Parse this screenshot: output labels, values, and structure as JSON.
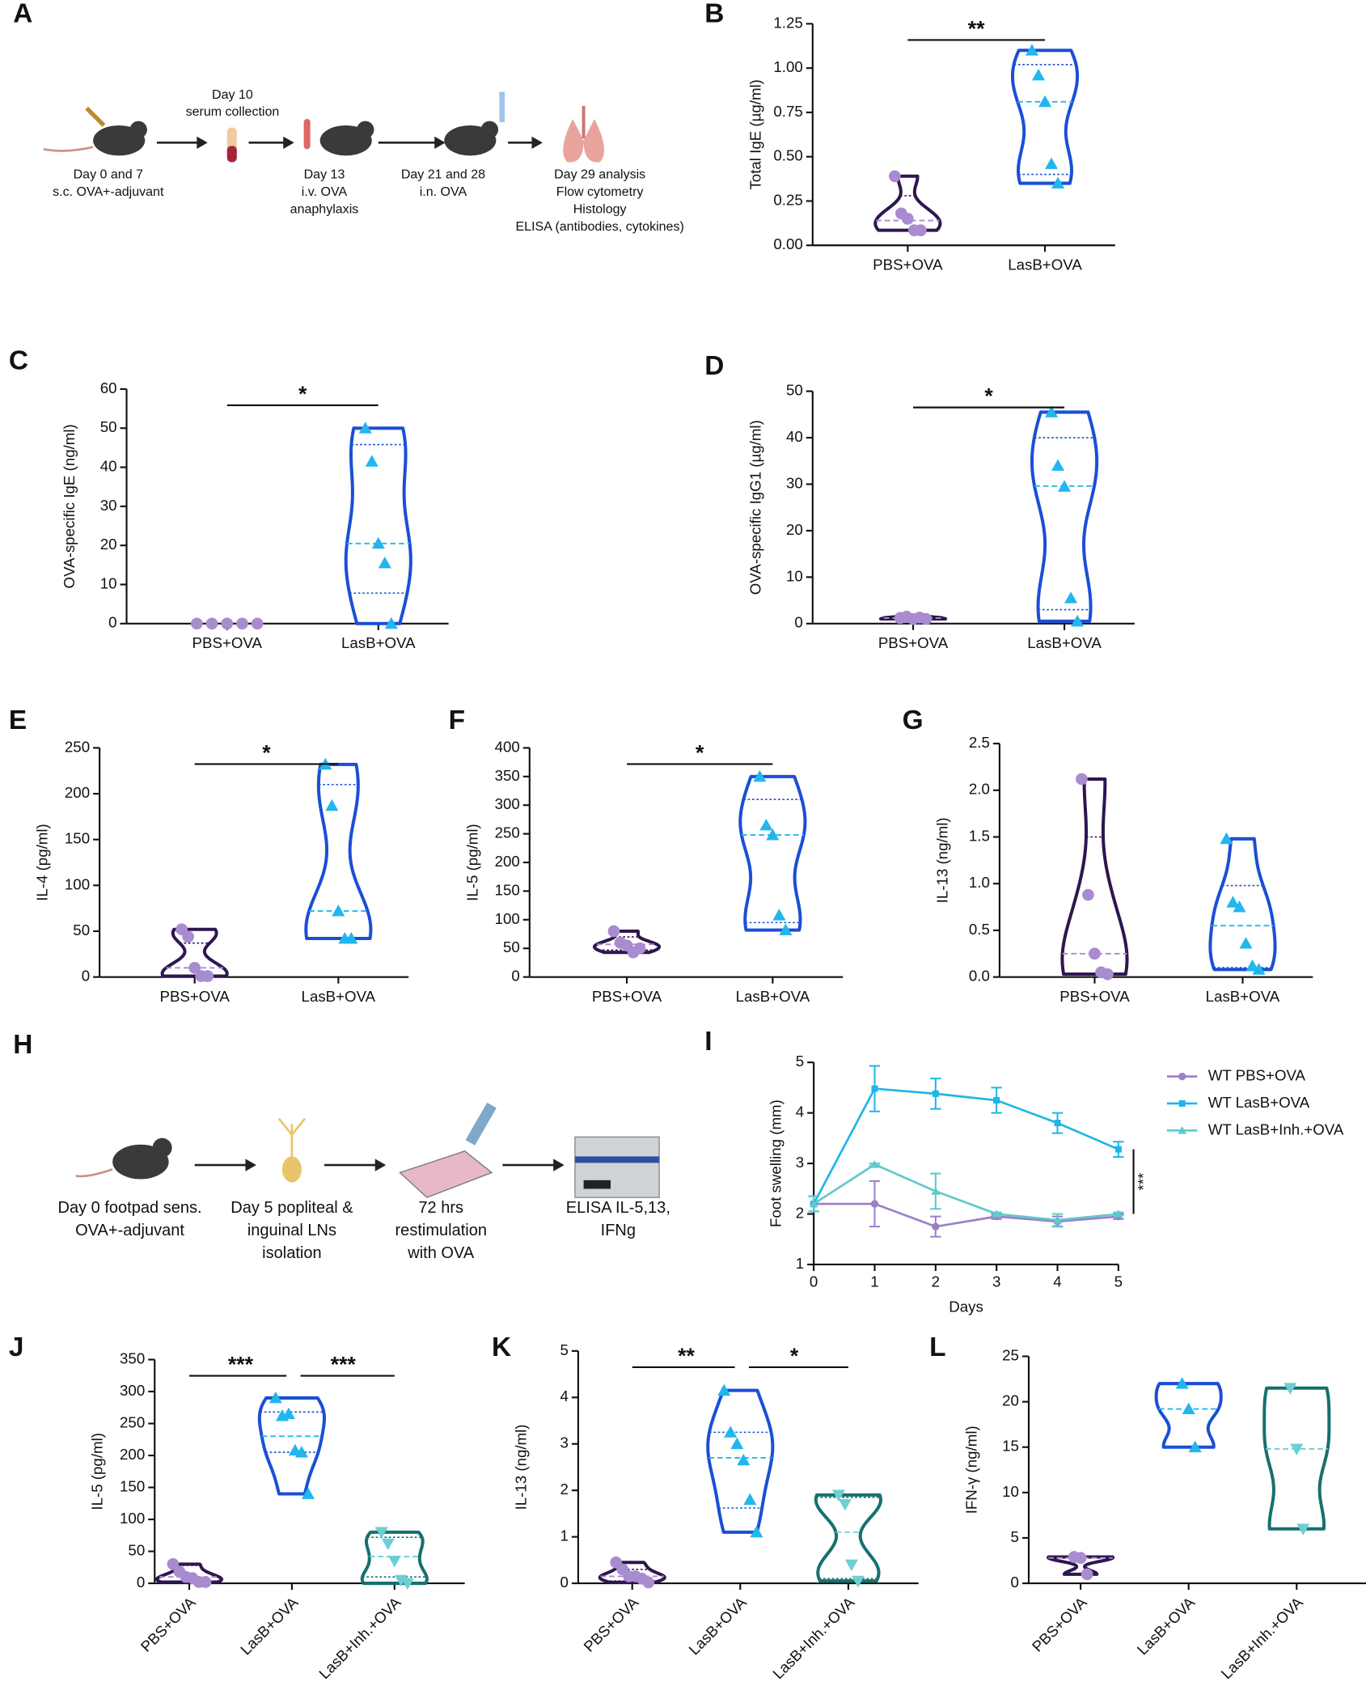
{
  "schematics": [
    {
      "panel": "A",
      "steps": [
        [
          "Day 0 and 7",
          "s.c. OVA+-adjuvant"
        ],
        [
          "Day 10",
          "serum collection"
        ],
        [
          "Day 13",
          "i.v. OVA",
          "anaphylaxis"
        ],
        [
          "Day 21 and 28",
          "i.n. OVA"
        ],
        [
          "Day 29 analysis",
          "Flow cytometry",
          "Histology",
          "ELISA (antibodies, cytokines)"
        ]
      ]
    },
    {
      "panel": "H",
      "steps": [
        [
          "Day 0 footpad sens.",
          "OVA+-adjuvant"
        ],
        [
          "Day 5 popliteal &",
          "inguinal LNs",
          "isolation"
        ],
        [
          "72 hrs",
          "restimulation",
          "with OVA"
        ],
        [
          "ELISA  IL-5,13,",
          "IFNg"
        ]
      ]
    }
  ],
  "chart_data": [
    {
      "type": "violin",
      "panel": "B",
      "ylabel": "Total IgE (µg/ml)",
      "ylim": [
        0,
        1.25
      ],
      "yticks": [
        {
          "value": 0,
          "label": "0.00"
        },
        0.25,
        {
          "value": 0.5,
          "label": "0.50"
        },
        0.75,
        {
          "value": 1,
          "label": "1.00"
        },
        1.25
      ],
      "categories": [
        "PBS+OVA",
        "LasB+OVA"
      ],
      "groups": [
        {
          "color": "#2e1650",
          "point_color": "#a98bd0",
          "marker": "circle",
          "values": [
            0.39,
            0.18,
            0.15,
            0.085,
            0.085
          ],
          "median": 0.14,
          "quartiles": [
            0.085,
            0.28
          ]
        },
        {
          "color": "#1a4fd6",
          "point_color": "#22b6ee",
          "marker": "triangle",
          "values": [
            1.1,
            0.96,
            0.81,
            0.46,
            0.35
          ],
          "median": 0.81,
          "quartiles": [
            0.4,
            1.02
          ]
        }
      ],
      "significance": [
        {
          "label": "**",
          "between": [
            0,
            1
          ]
        }
      ]
    },
    {
      "type": "violin",
      "panel": "C",
      "ylabel": "OVA-specific IgE (ng/ml)",
      "ylim": [
        0,
        60
      ],
      "yticks": [
        0,
        10,
        20,
        30,
        40,
        50,
        60
      ],
      "categories": [
        "PBS+OVA",
        "LasB+OVA"
      ],
      "groups": [
        {
          "color": "#2e1650",
          "point_color": "#a98bd0",
          "marker": "circle",
          "values": [
            0,
            0,
            0,
            0,
            0
          ]
        },
        {
          "color": "#1a4fd6",
          "point_color": "#22b6ee",
          "marker": "triangle",
          "values": [
            50,
            41.5,
            20.5,
            15.5,
            0
          ],
          "median": 20.5,
          "quartiles": [
            7.8,
            45.8
          ]
        }
      ],
      "significance": [
        {
          "label": "*",
          "between": [
            0,
            1
          ]
        }
      ]
    },
    {
      "type": "violin",
      "panel": "D",
      "ylabel": "OVA-specific IgG1 (µg/ml)",
      "ylim": [
        0,
        50
      ],
      "yticks": [
        0,
        10,
        20,
        30,
        40,
        50
      ],
      "categories": [
        "PBS+OVA",
        "LasB+OVA"
      ],
      "groups": [
        {
          "color": "#2e1650",
          "point_color": "#a98bd0",
          "marker": "circle",
          "values": [
            1.2,
            1.5,
            1.0,
            1.3,
            1.0
          ],
          "median": 1.2
        },
        {
          "color": "#1a4fd6",
          "point_color": "#22b6ee",
          "marker": "triangle",
          "values": [
            45.5,
            34,
            29.5,
            5.5,
            0.5
          ],
          "median": 29.6,
          "quartiles": [
            3,
            40
          ]
        }
      ],
      "significance": [
        {
          "label": "*",
          "between": [
            0,
            1
          ]
        }
      ]
    },
    {
      "type": "violin",
      "panel": "E",
      "ylabel": "IL-4 (pg/ml)",
      "ylim": [
        0,
        250
      ],
      "yticks": [
        0,
        50,
        100,
        150,
        200,
        250
      ],
      "categories": [
        "PBS+OVA",
        "LasB+OVA"
      ],
      "groups": [
        {
          "color": "#2e1650",
          "point_color": "#a98bd0",
          "marker": "circle",
          "values": [
            52,
            44,
            10,
            1,
            1
          ],
          "median": 10,
          "quartiles": [
            1,
            37
          ]
        },
        {
          "color": "#1a4fd6",
          "point_color": "#22b6ee",
          "marker": "triangle",
          "values": [
            232,
            187,
            72,
            42,
            42
          ],
          "median": 72,
          "quartiles": [
            42,
            210
          ]
        }
      ],
      "significance": [
        {
          "label": "*",
          "between": [
            0,
            1
          ]
        }
      ]
    },
    {
      "type": "violin",
      "panel": "F",
      "ylabel": "IL-5 (pg/ml)",
      "ylim": [
        0,
        400
      ],
      "yticks": [
        0,
        50,
        100,
        150,
        200,
        250,
        300,
        350,
        400
      ],
      "categories": [
        "PBS+OVA",
        "LasB+OVA"
      ],
      "groups": [
        {
          "color": "#2e1650",
          "point_color": "#a98bd0",
          "marker": "circle",
          "values": [
            80,
            60,
            55,
            43,
            50
          ],
          "median": 57,
          "quartiles": [
            47,
            70
          ]
        },
        {
          "color": "#1a4fd6",
          "point_color": "#22b6ee",
          "marker": "triangle",
          "values": [
            350,
            265,
            248,
            108,
            82
          ],
          "median": 248,
          "quartiles": [
            95,
            310
          ]
        }
      ],
      "significance": [
        {
          "label": "*",
          "between": [
            0,
            1
          ]
        }
      ]
    },
    {
      "type": "violin",
      "panel": "G",
      "ylabel": "IL-13 (ng/ml)",
      "ylim": [
        0,
        2.5
      ],
      "yticks": [
        {
          "value": 0,
          "label": "0.0"
        },
        0.5,
        {
          "value": 1,
          "label": "1.0"
        },
        1.5,
        {
          "value": 2,
          "label": "2.0"
        },
        2.5
      ],
      "categories": [
        "PBS+OVA",
        "LasB+OVA"
      ],
      "groups": [
        {
          "color": "#2e1650",
          "point_color": "#a98bd0",
          "marker": "circle",
          "values": [
            2.12,
            0.88,
            0.25,
            0.05,
            0.03
          ],
          "median": 0.25,
          "quartiles": [
            0.04,
            1.5
          ]
        },
        {
          "color": "#1a4fd6",
          "point_color": "#22b6ee",
          "marker": "triangle",
          "values": [
            1.48,
            0.8,
            0.75,
            0.36,
            0.12,
            0.08
          ],
          "median": 0.55,
          "quartiles": [
            0.1,
            0.98
          ]
        }
      ]
    },
    {
      "type": "line",
      "panel": "I",
      "xlabel": "Days",
      "ylabel": "Foot swelling (mm)",
      "x": [
        0,
        1,
        2,
        3,
        4,
        5
      ],
      "xlim": [
        0,
        5
      ],
      "xticks": [
        0,
        1,
        2,
        3,
        4,
        5
      ],
      "ylim": [
        1,
        5
      ],
      "yticks": [
        1,
        2,
        3,
        4,
        5
      ],
      "series": [
        {
          "name": "WT PBS+OVA",
          "color": "#9b7fc9",
          "marker": "circle",
          "values": [
            2.2,
            2.2,
            1.75,
            1.95,
            1.85,
            1.95
          ],
          "errors": [
            0.15,
            0.45,
            0.2,
            0.05,
            0.1,
            0.05
          ]
        },
        {
          "name": "WT LasB+OVA",
          "color": "#1fb5e8",
          "marker": "square",
          "values": [
            2.2,
            4.48,
            4.38,
            4.25,
            3.8,
            3.28
          ],
          "errors": [
            0.15,
            0.45,
            0.3,
            0.25,
            0.2,
            0.15
          ]
        },
        {
          "name": "WT LasB+Inh.+OVA",
          "color": "#5fc9cc",
          "marker": "triangle",
          "values": [
            2.2,
            2.98,
            2.45,
            2.0,
            1.88,
            2.0
          ],
          "errors": [
            0.15,
            0.02,
            0.35,
            0.03,
            0.12,
            0.03
          ]
        }
      ],
      "significance": [
        {
          "label": "***",
          "between": [
            1,
            2
          ]
        }
      ]
    },
    {
      "type": "violin",
      "panel": "J",
      "ylabel": "IL-5 (pg/ml)",
      "ylim": [
        0,
        350
      ],
      "yticks": [
        0,
        50,
        100,
        150,
        200,
        250,
        300,
        350
      ],
      "categories": [
        "PBS+OVA",
        "LasB+OVA",
        "LasB+Inh.+OVA"
      ],
      "groups": [
        {
          "color": "#2e1650",
          "point_color": "#a98bd0",
          "marker": "circle",
          "values": [
            30,
            18,
            10,
            8,
            2,
            2
          ],
          "median": 10,
          "quartiles": [
            2,
            28
          ]
        },
        {
          "color": "#1a4fd6",
          "point_color": "#22b6ee",
          "marker": "triangle",
          "values": [
            290,
            262,
            265,
            208,
            205,
            140
          ],
          "median": 230,
          "quartiles": [
            205,
            268
          ]
        },
        {
          "color": "#17706f",
          "point_color": "#6ccfd3",
          "marker": "triangle-down",
          "values": [
            80,
            62,
            35,
            5,
            0
          ],
          "median": 42,
          "quartiles": [
            10,
            72
          ]
        }
      ],
      "significance": [
        {
          "label": "***",
          "between": [
            0,
            1
          ]
        },
        {
          "label": "***",
          "between": [
            1,
            2
          ]
        }
      ]
    },
    {
      "type": "violin",
      "panel": "K",
      "ylabel": "IL-13 (ng/ml)",
      "ylim": [
        0,
        5
      ],
      "yticks": [
        0,
        1,
        2,
        3,
        4,
        5
      ],
      "categories": [
        "PBS+OVA",
        "LasB+OVA",
        "LasB+Inh.+OVA"
      ],
      "groups": [
        {
          "color": "#2e1650",
          "point_color": "#a98bd0",
          "marker": "circle",
          "values": [
            0.45,
            0.3,
            0.15,
            0.15,
            0.1,
            0.02
          ],
          "median": 0.15,
          "quartiles": [
            0.05,
            0.3
          ]
        },
        {
          "color": "#1a4fd6",
          "point_color": "#22b6ee",
          "marker": "triangle",
          "values": [
            4.15,
            3.25,
            3.0,
            2.65,
            1.8,
            1.1
          ],
          "median": 2.7,
          "quartiles": [
            1.62,
            3.25
          ]
        },
        {
          "color": "#17706f",
          "point_color": "#6ccfd3",
          "marker": "triangle-down",
          "values": [
            1.9,
            1.7,
            0.4,
            0.05
          ],
          "median": 1.1,
          "quartiles": [
            0.1,
            1.85
          ]
        }
      ],
      "significance": [
        {
          "label": "**",
          "between": [
            0,
            1
          ]
        },
        {
          "label": "*",
          "between": [
            1,
            2
          ]
        }
      ]
    },
    {
      "type": "violin",
      "panel": "L",
      "ylabel": "IFN-γ (ng/ml)",
      "ylim": [
        0,
        25
      ],
      "yticks": [
        0,
        5,
        10,
        15,
        20,
        25
      ],
      "categories": [
        "PBS+OVA",
        "LasB+OVA",
        "LasB+Inh.+OVA"
      ],
      "groups": [
        {
          "color": "#2e1650",
          "point_color": "#a98bd0",
          "marker": "circle",
          "values": [
            2.9,
            2.8,
            1.0
          ],
          "median": 2.8
        },
        {
          "color": "#1a4fd6",
          "point_color": "#22b6ee",
          "marker": "triangle",
          "values": [
            22,
            19.2,
            15
          ],
          "median": 19.2
        },
        {
          "color": "#17706f",
          "point_color": "#6ccfd3",
          "marker": "triangle-down",
          "values": [
            21.5,
            14.8,
            6
          ],
          "median": 14.8
        }
      ]
    }
  ]
}
